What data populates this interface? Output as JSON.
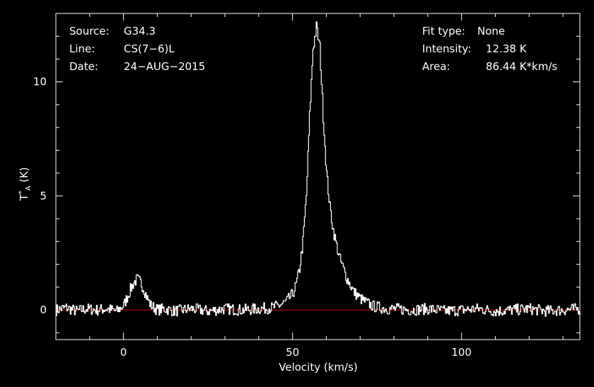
{
  "header": {
    "left": [
      {
        "label": "Source:",
        "value": "G34.3"
      },
      {
        "label": "Line:",
        "value": "CS(7−6)L"
      },
      {
        "label": "Date:",
        "value": "24−AUG−2015"
      }
    ],
    "right": [
      {
        "label": "Fit type:",
        "value": "None"
      },
      {
        "label": "Intensity:",
        "value": "12.38 K"
      },
      {
        "label": "Area:",
        "value": "86.44 K*km/s"
      }
    ]
  },
  "colors": {
    "background": "#000000",
    "trace": "#ffffff",
    "baseline": "#cc0000"
  },
  "chart_data": {
    "type": "line",
    "xlabel": "Velocity (km/s)",
    "ylabel_base": "T",
    "ylabel_sup": "*",
    "ylabel_sub": "A",
    "ylabel_unit": "(K)",
    "xlim": [
      -20,
      135
    ],
    "ylim": [
      -1.3,
      13
    ],
    "xticks": [
      0,
      50,
      100
    ],
    "xtick_labels": [
      "0",
      "50",
      "100"
    ],
    "yticks": [
      0,
      5,
      10
    ],
    "ytick_labels": [
      "0",
      "5",
      "10"
    ],
    "baseline": 0,
    "grid": false,
    "series": [
      {
        "x": [
          -20,
          -17,
          -14,
          -11,
          -8,
          -5,
          -2,
          0,
          1,
          2,
          3,
          4,
          5,
          6,
          7,
          8,
          10,
          12,
          15,
          20,
          25,
          30,
          35,
          40,
          44,
          46,
          48,
          50,
          51,
          52,
          53,
          54,
          55,
          56,
          57,
          58,
          59,
          60,
          61,
          62,
          63,
          64,
          65,
          66,
          67,
          68,
          70,
          72,
          74,
          76,
          78,
          80,
          85,
          90,
          95,
          100,
          105,
          110,
          115,
          120,
          125,
          130,
          135
        ],
        "y": [
          0,
          0.1,
          -0.05,
          0.05,
          0,
          0.05,
          -0.05,
          0.2,
          0.55,
          0.9,
          1.2,
          1.35,
          1.2,
          0.9,
          0.5,
          0.2,
          0,
          0.05,
          -0.05,
          0.05,
          -0.05,
          0.05,
          0,
          0.05,
          0.1,
          0.2,
          0.35,
          0.7,
          1.1,
          1.8,
          3,
          5,
          8.5,
          11.5,
          12.38,
          11.5,
          8.5,
          6,
          4.5,
          3.5,
          2.8,
          2.2,
          1.8,
          1.4,
          1.1,
          0.8,
          0.5,
          0.3,
          0.15,
          0.1,
          0.05,
          0.05,
          0,
          0.05,
          -0.05,
          0,
          0.05,
          -0.05,
          0,
          0.05,
          -0.05,
          0,
          0.05
        ]
      }
    ]
  }
}
